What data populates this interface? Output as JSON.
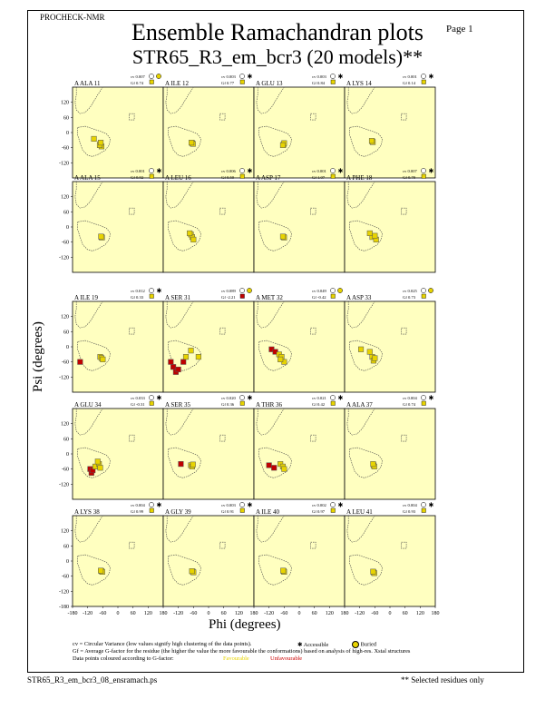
{
  "header": {
    "program": "PROCHECK-NMR",
    "page": "Page  1",
    "title": "Ensemble Ramachandran plots",
    "subtitle": "STR65_R3_em_bcr3 (20 models)**"
  },
  "axes": {
    "xlabel": "Phi (degrees)",
    "ylabel": "Psi (degrees)",
    "y_ticks": [
      "120",
      "60",
      "0",
      "-60",
      "-120"
    ],
    "y_ticks_bottom": [
      "120",
      "60",
      "0",
      "-60",
      "-120",
      "-180"
    ],
    "x_ticks": [
      "-180",
      "-120",
      "-60",
      "0",
      "60",
      "120",
      "180"
    ]
  },
  "footer": {
    "cv_text": "cv = Circular Variance (low values signify high clustering of the data points).",
    "accessible": "Accessible",
    "buried": "Buried",
    "gf_text": "Gf = Average G-factor for the residue (the higher the value the more favourable the conformations) based on analysis of high-res. Xstal structures",
    "dp_text": "Data points coloured according to G-factor:",
    "favourable": "Favourable",
    "unfavourable": "Unfavourable",
    "file": "STR65_R3_em_bcr3_08_ensramach.ps",
    "note": "** Selected residues only"
  },
  "colors": {
    "panel_bg": "#ffffc0",
    "favourable": "#e8d400",
    "unfavourable": "#c00000"
  },
  "chart_data": {
    "type": "scatter",
    "xlim": [
      -180,
      180
    ],
    "ylim": [
      -180,
      180
    ],
    "panels": [
      {
        "residue": "A ALA 11",
        "cv": "cv 0.007",
        "gf": "Gf 0.74",
        "acc": "buried",
        "points": [
          [
            -70,
            -45,
            "f"
          ],
          [
            -65,
            -55,
            "f"
          ],
          [
            -72,
            -50,
            "f"
          ],
          [
            -68,
            -40,
            "f"
          ],
          [
            -95,
            -25,
            "f"
          ]
        ]
      },
      {
        "residue": "A ILE 12",
        "cv": "cv 0.003",
        "gf": "Gf 0.77",
        "acc": "accessible",
        "points": [
          [
            -65,
            -42,
            "f"
          ],
          [
            -62,
            -45,
            "f"
          ],
          [
            -68,
            -40,
            "f"
          ]
        ]
      },
      {
        "residue": "A GLU 13",
        "cv": "cv 0.003",
        "gf": "Gf 0.84",
        "acc": "accessible",
        "points": [
          [
            -62,
            -48,
            "f"
          ],
          [
            -60,
            -42,
            "f"
          ],
          [
            -65,
            -50,
            "f"
          ]
        ]
      },
      {
        "residue": "A LYS 14",
        "cv": "cv 0.001",
        "gf": "Gf 0.14",
        "acc": "accessible",
        "points": [
          [
            -70,
            -35,
            "f"
          ],
          [
            -68,
            -38,
            "f"
          ],
          [
            -72,
            -33,
            "f"
          ]
        ]
      },
      {
        "residue": "A ALA 15",
        "cv": "cv 0.001",
        "gf": "Gf 0.92",
        "acc": "accessible",
        "points": [
          [
            -65,
            -40,
            "f"
          ],
          [
            -63,
            -42,
            "f"
          ],
          [
            -67,
            -38,
            "f"
          ]
        ]
      },
      {
        "residue": "A LEU 16",
        "cv": "cv 0.006",
        "gf": "Gf 0.50",
        "acc": "accessible",
        "points": [
          [
            -70,
            -30,
            "f"
          ],
          [
            -65,
            -40,
            "f"
          ],
          [
            -60,
            -50,
            "f"
          ],
          [
            -75,
            -25,
            "f"
          ]
        ]
      },
      {
        "residue": "A ASP 17",
        "cv": "cv 0.001",
        "gf": "Gf 1.07",
        "acc": "accessible",
        "points": [
          [
            -62,
            -40,
            "f"
          ],
          [
            -60,
            -42,
            "f"
          ],
          [
            -65,
            -38,
            "f"
          ]
        ]
      },
      {
        "residue": "A PHE 18",
        "cv": "cv 0.007",
        "gf": "Gf 0.70",
        "acc": "accessible",
        "points": [
          [
            -70,
            -40,
            "f"
          ],
          [
            -55,
            -50,
            "f"
          ],
          [
            -80,
            -25,
            "f"
          ],
          [
            -60,
            -35,
            "f"
          ]
        ]
      },
      {
        "residue": "A ILE 19",
        "cv": "cv 0.012",
        "gf": "Gf 0.33",
        "acc": "accessible",
        "points": [
          [
            -70,
            -40,
            "f"
          ],
          [
            -65,
            -45,
            "f"
          ],
          [
            -60,
            -50,
            "f"
          ],
          [
            -150,
            -60,
            "u"
          ]
        ]
      },
      {
        "residue": "A SER 31",
        "cv": "cv 0.089",
        "gf": "Gf -2.21",
        "acc": "buried",
        "points": [
          [
            -150,
            -60,
            "u"
          ],
          [
            -140,
            -80,
            "u"
          ],
          [
            -130,
            -100,
            "u"
          ],
          [
            -120,
            -90,
            "u"
          ],
          [
            -100,
            -60,
            "u"
          ],
          [
            -70,
            -15,
            "f"
          ],
          [
            -40,
            -40,
            "f"
          ],
          [
            -90,
            -40,
            "f"
          ]
        ]
      },
      {
        "residue": "A MET 32",
        "cv": "cv 0.049",
        "gf": "Gf -0.42",
        "acc": "buried",
        "points": [
          [
            -110,
            -10,
            "u"
          ],
          [
            -95,
            -20,
            "u"
          ],
          [
            -80,
            -30,
            "f"
          ],
          [
            -70,
            -40,
            "f"
          ],
          [
            -60,
            -60,
            "f"
          ],
          [
            -75,
            -50,
            "f"
          ]
        ]
      },
      {
        "residue": "A ASP 33",
        "cv": "cv 0.025",
        "gf": "Gf 0.73",
        "acc": "buried",
        "points": [
          [
            -115,
            -10,
            "f"
          ],
          [
            -80,
            -20,
            "f"
          ],
          [
            -70,
            -40,
            "f"
          ],
          [
            -65,
            -55,
            "f"
          ],
          [
            -60,
            -45,
            "f"
          ]
        ]
      },
      {
        "residue": "A GLU 34",
        "cv": "cv 0.033",
        "gf": "Gf -0.31",
        "acc": "accessible",
        "points": [
          [
            -110,
            -60,
            "u"
          ],
          [
            -105,
            -75,
            "u"
          ],
          [
            -100,
            -65,
            "u"
          ],
          [
            -90,
            -50,
            "f"
          ],
          [
            -75,
            -40,
            "f"
          ],
          [
            -70,
            -55,
            "f"
          ],
          [
            -80,
            -30,
            "f"
          ]
        ]
      },
      {
        "residue": "A SER 35",
        "cv": "cv 0.020",
        "gf": "Gf 0.36",
        "acc": "accessible",
        "points": [
          [
            -110,
            -40,
            "u"
          ],
          [
            -70,
            -45,
            "f"
          ],
          [
            -65,
            -50,
            "f"
          ],
          [
            -62,
            -42,
            "f"
          ]
        ]
      },
      {
        "residue": "A THR 36",
        "cv": "cv 0.021",
        "gf": "Gf 0.42",
        "acc": "accessible",
        "points": [
          [
            -120,
            -45,
            "u"
          ],
          [
            -100,
            -55,
            "u"
          ],
          [
            -75,
            -40,
            "f"
          ],
          [
            -65,
            -50,
            "f"
          ],
          [
            -60,
            -60,
            "f"
          ]
        ]
      },
      {
        "residue": "A ALA 37",
        "cv": "cv 0.004",
        "gf": "Gf 0.74",
        "acc": "accessible",
        "points": [
          [
            -65,
            -45,
            "f"
          ],
          [
            -62,
            -50,
            "f"
          ],
          [
            -67,
            -40,
            "f"
          ]
        ]
      },
      {
        "residue": "A LYS 38",
        "cv": "cv 0.004",
        "gf": "Gf 0.99",
        "acc": "accessible",
        "points": [
          [
            -65,
            -40,
            "f"
          ],
          [
            -62,
            -43,
            "f"
          ],
          [
            -68,
            -38,
            "f"
          ]
        ]
      },
      {
        "residue": "A GLY 39",
        "cv": "cv 0.003",
        "gf": "Gf 0.91",
        "acc": "accessible",
        "points": [
          [
            -63,
            -42,
            "f"
          ],
          [
            -60,
            -45,
            "f"
          ],
          [
            -66,
            -40,
            "f"
          ]
        ]
      },
      {
        "residue": "A ILE 40",
        "cv": "cv 0.002",
        "gf": "Gf 0.97",
        "acc": "accessible",
        "points": [
          [
            -62,
            -40,
            "f"
          ],
          [
            -60,
            -43,
            "f"
          ],
          [
            -64,
            -38,
            "f"
          ]
        ]
      },
      {
        "residue": "A LEU 41",
        "cv": "cv 0.004",
        "gf": "Gf 0.93",
        "acc": "accessible",
        "points": [
          [
            -65,
            -45,
            "f"
          ],
          [
            -62,
            -48,
            "f"
          ],
          [
            -67,
            -42,
            "f"
          ]
        ]
      }
    ]
  }
}
